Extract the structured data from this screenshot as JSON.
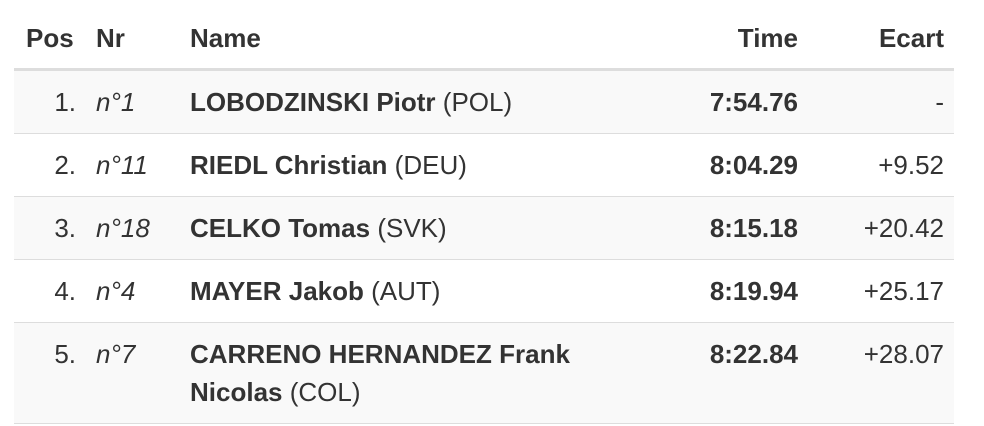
{
  "table": {
    "header": [
      "Pos",
      "Nr",
      "Name",
      "Time",
      "Ecart"
    ],
    "rows": [
      {
        "pos": "1.",
        "nr": "n°1",
        "name": "LOBODZINSKI Piotr",
        "country": "(POL)",
        "time": "7:54.76",
        "ecart": "-"
      },
      {
        "pos": "2.",
        "nr": "n°11",
        "name": "RIEDL Christian",
        "country": "(DEU)",
        "time": "8:04.29",
        "ecart": "+9.52"
      },
      {
        "pos": "3.",
        "nr": "n°18",
        "name": "CELKO Tomas",
        "country": "(SVK)",
        "time": "8:15.18",
        "ecart": "+20.42"
      },
      {
        "pos": "4.",
        "nr": "n°4",
        "name": "MAYER Jakob",
        "country": "(AUT)",
        "time": "8:19.94",
        "ecart": "+25.17"
      },
      {
        "pos": "5.",
        "nr": "n°7",
        "name": "CARRENO HERNANDEZ Frank Nicolas",
        "country": "(COL)",
        "time": "8:22.84",
        "ecart": "+28.07"
      }
    ]
  }
}
